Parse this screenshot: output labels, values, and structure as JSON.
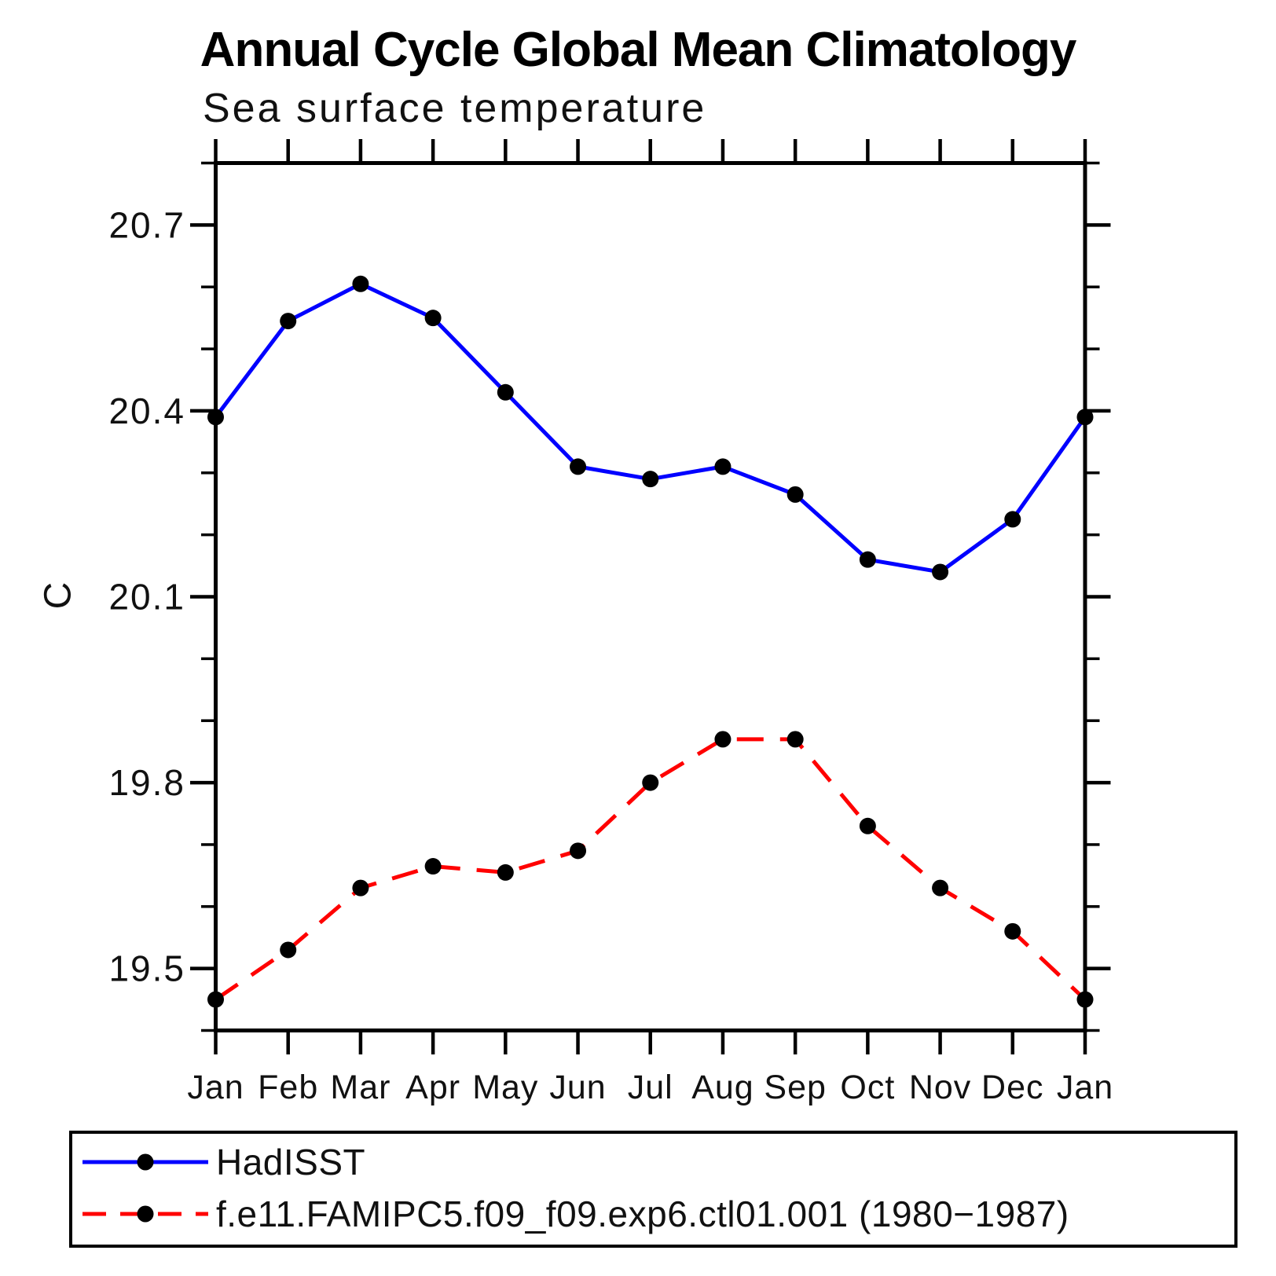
{
  "title": "Annual Cycle Global Mean Climatology",
  "subtitle": "Sea surface temperature",
  "chart_data": {
    "type": "line",
    "title": "Annual Cycle Global Mean Climatology",
    "subtitle": "Sea surface temperature",
    "ylabel": "C",
    "xlabel": "",
    "x_categories": [
      "Jan",
      "Feb",
      "Mar",
      "Apr",
      "May",
      "Jun",
      "Jul",
      "Aug",
      "Sep",
      "Oct",
      "Nov",
      "Dec",
      "Jan"
    ],
    "ylim": [
      19.4,
      20.8
    ],
    "ytick_values": [
      19.5,
      19.8,
      20.1,
      20.4,
      20.7
    ],
    "ytick_labels": [
      "19.5",
      "19.8",
      "20.1",
      "20.4",
      "20.7"
    ],
    "y_minor_step": 0.1,
    "grid": false,
    "legend_position": "bottom-left-box",
    "marker_color": "#000000",
    "axis_color": "#000000",
    "series": [
      {
        "name": "HadISST",
        "color": "#0000ff",
        "line_style": "solid",
        "marker": "circle",
        "values": [
          20.39,
          20.545,
          20.605,
          20.55,
          20.43,
          20.31,
          20.29,
          20.31,
          20.265,
          20.16,
          20.14,
          20.225,
          20.39
        ]
      },
      {
        "name": "f.e11.FAMIPC5.f09_f09.exp6.ctl01.001 (1980−1987)",
        "color": "#ff0000",
        "line_style": "dashed",
        "marker": "circle",
        "values": [
          19.45,
          19.53,
          19.63,
          19.665,
          19.655,
          19.69,
          19.8,
          19.87,
          19.87,
          19.73,
          19.63,
          19.56,
          19.45
        ]
      }
    ]
  }
}
